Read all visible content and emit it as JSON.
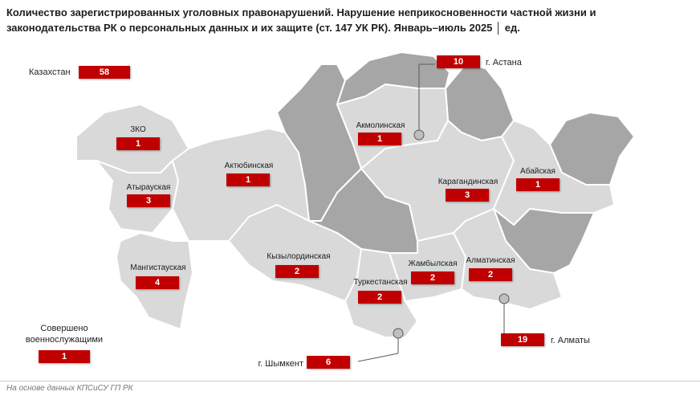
{
  "title": "Количество зарегистрированных уголовных правонарушений. Нарушение неприкосновенности частной жизни и законодательства РК о персональных данных и их защите (ст. 147 УК РК). Январь–июль 2025 │ ед.",
  "total": {
    "label": "Казахстан",
    "value": "58"
  },
  "military": {
    "label": "Совершено военнослужащими",
    "value": "1"
  },
  "regions": [
    {
      "name": "ЗКО",
      "value": "1"
    },
    {
      "name": "Атырауская",
      "value": "3"
    },
    {
      "name": "Актюбинская",
      "value": "1"
    },
    {
      "name": "Мангистауская",
      "value": "4"
    },
    {
      "name": "Кызылординская",
      "value": "2"
    },
    {
      "name": "Акмолинская",
      "value": "1"
    },
    {
      "name": "Карагандинская",
      "value": "3"
    },
    {
      "name": "Абайская",
      "value": "1"
    },
    {
      "name": "Жамбылская",
      "value": "2"
    },
    {
      "name": "Туркестанская",
      "value": "2"
    },
    {
      "name": "Алматинская",
      "value": "2"
    }
  ],
  "cities": [
    {
      "name": "г. Астана",
      "value": "10"
    },
    {
      "name": "г. Алматы",
      "value": "19"
    },
    {
      "name": "г. Шымкент",
      "value": "6"
    }
  ],
  "source": "На основе данных КПСиСУ ГП РК",
  "colors": {
    "accent": "#c00000",
    "region_light": "#d9d9d9",
    "region_dark": "#a6a6a6"
  }
}
